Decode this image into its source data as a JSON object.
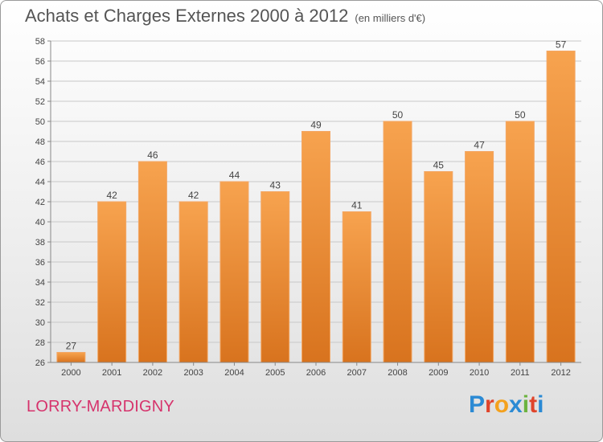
{
  "header": {
    "title": "Achats et Charges Externes 2000 à 2012",
    "unit": "(en milliers d'€)"
  },
  "footer": {
    "commune": "LORRY-MARDIGNY",
    "logo_letters": [
      "P",
      "r",
      "o",
      "x",
      "i",
      "t",
      "i"
    ],
    "logo_colors": [
      "#2b8ad4",
      "#e0442b",
      "#f4a11d",
      "#2b8ad4",
      "#6cb33f",
      "#e0442b",
      "#2b8ad4"
    ]
  },
  "colors": {
    "bar_top": "#f7a34f",
    "bar_bottom": "#d8731e",
    "commune_text": "#d6336c"
  },
  "chart_data": {
    "type": "bar",
    "title": "Achats et Charges Externes 2000 à 2012",
    "xlabel": "",
    "ylabel": "",
    "categories": [
      "2000",
      "2001",
      "2002",
      "2003",
      "2004",
      "2005",
      "2006",
      "2007",
      "2008",
      "2009",
      "2010",
      "2011",
      "2012"
    ],
    "values": [
      27,
      42,
      46,
      42,
      44,
      43,
      49,
      41,
      50,
      45,
      47,
      50,
      57
    ],
    "ylim": [
      26,
      58
    ],
    "yticks": [
      26,
      28,
      30,
      32,
      34,
      36,
      38,
      40,
      42,
      44,
      46,
      48,
      50,
      52,
      54,
      56,
      58
    ],
    "grid": true,
    "legend": "none"
  }
}
